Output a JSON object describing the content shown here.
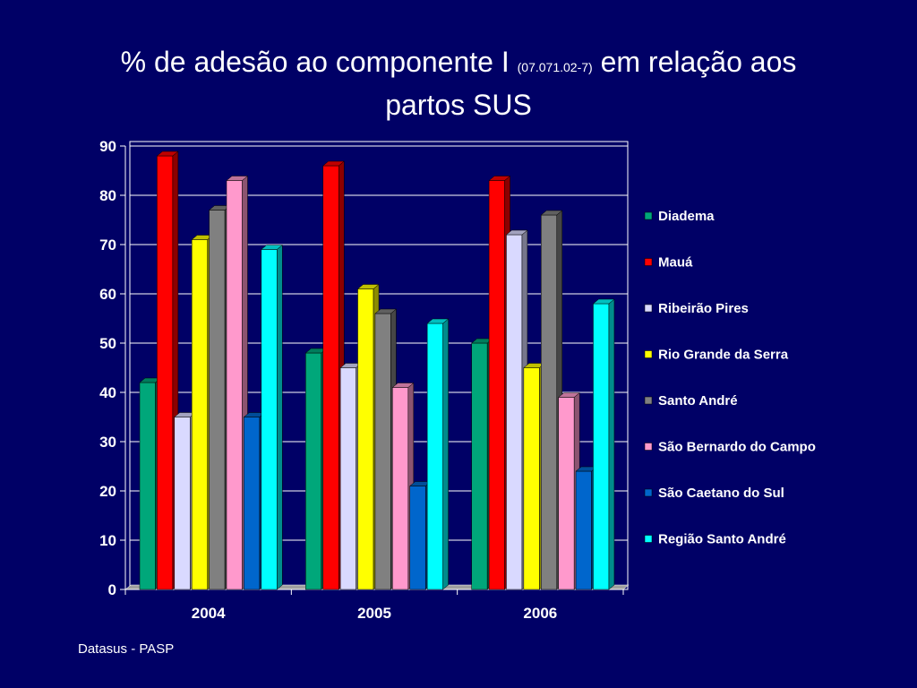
{
  "title": {
    "part1": "% de adesão ao componente I ",
    "code": "(07.071.02-7)",
    "part2": " em relação aos",
    "line2": "partos SUS"
  },
  "source": "Datasus - PASP",
  "chart_data": {
    "type": "bar",
    "categories": [
      "2004",
      "2005",
      "2006"
    ],
    "series": [
      {
        "name": "Diadema",
        "color": "#00a77a",
        "values": [
          42,
          48,
          50
        ]
      },
      {
        "name": "Mauá",
        "color": "#ff0000",
        "values": [
          88,
          86,
          83
        ]
      },
      {
        "name": "Ribeirão Pires",
        "color": "#d9d9ff",
        "values": [
          35,
          45,
          72
        ]
      },
      {
        "name": "Rio Grande da Serra",
        "color": "#ffff00",
        "values": [
          71,
          61,
          45
        ]
      },
      {
        "name": "Santo André",
        "color": "#808080",
        "values": [
          77,
          56,
          76
        ]
      },
      {
        "name": "São Bernardo do Campo",
        "color": "#ff99cc",
        "values": [
          83,
          41,
          39
        ]
      },
      {
        "name": "São Caetano do Sul",
        "color": "#0066cc",
        "values": [
          35,
          21,
          24
        ]
      },
      {
        "name": "Região Santo André",
        "color": "#00ffff",
        "values": [
          69,
          54,
          58
        ]
      }
    ],
    "ylim": [
      0,
      90
    ],
    "yticks": [
      "0",
      "10",
      "20",
      "30",
      "40",
      "50",
      "60",
      "70",
      "80",
      "90"
    ],
    "grid": true,
    "legend_position": "right",
    "style": "3d-clustered"
  }
}
